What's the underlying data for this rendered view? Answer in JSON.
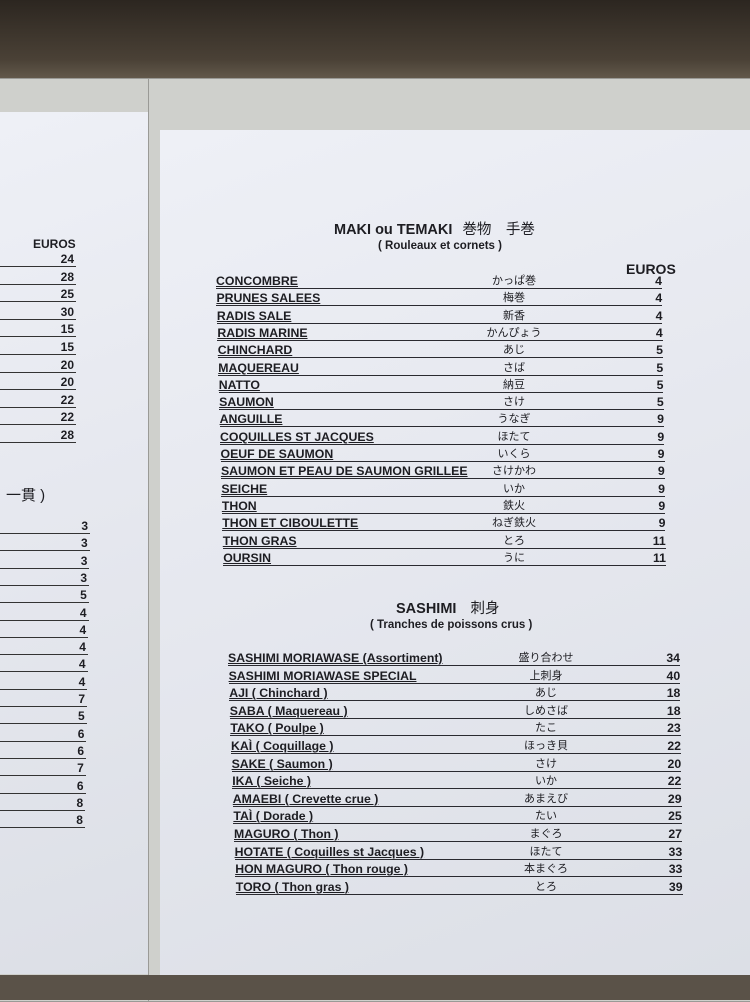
{
  "left_sheet": {
    "euros_label": "EUROS",
    "prices_top": [
      "24",
      "28",
      "25",
      "30",
      "15",
      "15",
      "20",
      "20",
      "22",
      "22",
      "28"
    ],
    "partial_heading": "一貫 )",
    "prices_bottom": [
      "3",
      "3",
      "3",
      "3",
      "5",
      "4",
      "4",
      "4",
      "4",
      "4",
      "7",
      "5",
      "6",
      "6",
      "7",
      "6",
      "8",
      "8"
    ]
  },
  "maki": {
    "title": "MAKI ou TEMAKI",
    "title_jp": "巻物　手巻",
    "subtitle": "( Rouleaux et cornets )",
    "euros_label": "EUROS",
    "items": [
      {
        "name": "CONCOMBRE",
        "jp": "かっぱ巻",
        "price": "4"
      },
      {
        "name": "PRUNES SALEES",
        "jp": "梅巻",
        "price": "4"
      },
      {
        "name": "RADIS SALE",
        "jp": "新香",
        "price": "4"
      },
      {
        "name": "RADIS MARINE",
        "jp": "かんぴょう",
        "price": "4"
      },
      {
        "name": "CHINCHARD",
        "jp": "あじ",
        "price": "5"
      },
      {
        "name": "MAQUEREAU",
        "jp": "さば",
        "price": "5"
      },
      {
        "name": "NATTO",
        "jp": "納豆",
        "price": "5"
      },
      {
        "name": "SAUMON",
        "jp": "さけ",
        "price": "5"
      },
      {
        "name": "ANGUILLE",
        "jp": "うなぎ",
        "price": "9"
      },
      {
        "name": "COQUILLES ST JACQUES",
        "jp": "ほたて",
        "price": "9"
      },
      {
        "name": "OEUF DE SAUMON",
        "jp": "いくら",
        "price": "9"
      },
      {
        "name": "SAUMON ET PEAU DE SAUMON GRILLEE",
        "jp": "さけかわ",
        "price": "9"
      },
      {
        "name": "SEICHE",
        "jp": "いか",
        "price": "9"
      },
      {
        "name": "THON",
        "jp": "鉄火",
        "price": "9"
      },
      {
        "name": "THON ET CIBOULETTE",
        "jp": "ねぎ鉄火",
        "price": "9"
      },
      {
        "name": "THON GRAS",
        "jp": "とろ",
        "price": "11"
      },
      {
        "name": "OURSIN",
        "jp": "うに",
        "price": "11"
      }
    ]
  },
  "sashimi": {
    "title": "SASHIMI",
    "title_jp": "刺身",
    "subtitle": "( Tranches de poissons crus )",
    "items": [
      {
        "name": "SASHIMI MORIAWASE (Assortiment)",
        "jp": "盛り合わせ",
        "price": "34"
      },
      {
        "name": "SASHIMI MORIAWASE SPECIAL",
        "jp": "上刺身",
        "price": "40"
      },
      {
        "name": "AJI ( Chinchard )",
        "jp": "あじ",
        "price": "18"
      },
      {
        "name": "SABA ( Maquereau )",
        "jp": "しめさば",
        "price": "18"
      },
      {
        "name": "TAKO ( Poulpe )",
        "jp": "たこ",
        "price": "23"
      },
      {
        "name": "KAÌ ( Coquillage )",
        "jp": "ほっき貝",
        "price": "22"
      },
      {
        "name": "SAKE ( Saumon )",
        "jp": "さけ",
        "price": "20"
      },
      {
        "name": "IKA ( Seiche )",
        "jp": "いか",
        "price": "22"
      },
      {
        "name": "AMAEBI ( Crevette crue )",
        "jp": "あまえび",
        "price": "29"
      },
      {
        "name": "TAÌ ( Dorade )",
        "jp": "たい",
        "price": "25"
      },
      {
        "name": "MAGURO ( Thon )",
        "jp": "まぐろ",
        "price": "27"
      },
      {
        "name": "HOTATE ( Coquilles st Jacques )",
        "jp": "ほたて",
        "price": "33"
      },
      {
        "name": "HON MAGURO ( Thon rouge )",
        "jp": "本まぐろ",
        "price": "33"
      },
      {
        "name": "TORO ( Thon gras )",
        "jp": "とろ",
        "price": "39"
      }
    ]
  }
}
